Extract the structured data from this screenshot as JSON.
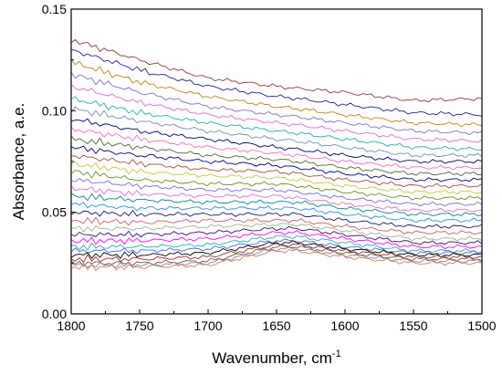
{
  "chart_data": {
    "type": "line",
    "title": "",
    "xlabel": "Wavenumber, cm",
    "xlabel_superscript": "-1",
    "ylabel": "Absorbance, a.e.",
    "xlim": [
      1800,
      1500
    ],
    "ylim": [
      0,
      0.15
    ],
    "x_reversed": true,
    "grid": false,
    "legend": "none",
    "xticks": [
      {
        "value": 1800,
        "label": "1800"
      },
      {
        "value": 1750,
        "label": "1750"
      },
      {
        "value": 1700,
        "label": "1700"
      },
      {
        "value": 1650,
        "label": "1650"
      },
      {
        "value": 1600,
        "label": "1600"
      },
      {
        "value": 1550,
        "label": "1550"
      },
      {
        "value": 1500,
        "label": "1500"
      }
    ],
    "yticks": [
      {
        "value": 0,
        "label": "0.00"
      },
      {
        "value": 0.05,
        "label": "0.05"
      },
      {
        "value": 0.1,
        "label": "0.10"
      },
      {
        "value": 0.15,
        "label": "0.15"
      }
    ],
    "x": [
      1800,
      1750,
      1700,
      1650,
      1635,
      1600,
      1550,
      1500
    ],
    "series": [
      {
        "color": "#8b3a3a",
        "values": [
          0.135,
          0.125,
          0.116,
          0.112,
          0.111,
          0.109,
          0.105,
          0.106
        ]
      },
      {
        "color": "#1f1f8f",
        "values": [
          0.13,
          0.12,
          0.112,
          0.107,
          0.106,
          0.103,
          0.099,
          0.098
        ]
      },
      {
        "color": "#b8860b",
        "values": [
          0.124,
          0.114,
          0.107,
          0.102,
          0.101,
          0.098,
          0.094,
          0.093
        ]
      },
      {
        "color": "#7a6fd0",
        "values": [
          0.118,
          0.109,
          0.102,
          0.098,
          0.097,
          0.094,
          0.09,
          0.089
        ]
      },
      {
        "color": "#e066e0",
        "values": [
          0.112,
          0.104,
          0.098,
          0.094,
          0.093,
          0.09,
          0.086,
          0.085
        ]
      },
      {
        "color": "#20b2aa",
        "values": [
          0.106,
          0.099,
          0.094,
          0.09,
          0.089,
          0.086,
          0.082,
          0.081
        ]
      },
      {
        "color": "#6a8fc0",
        "values": [
          0.101,
          0.095,
          0.09,
          0.086,
          0.085,
          0.082,
          0.078,
          0.078
        ]
      },
      {
        "color": "#000080",
        "values": [
          0.096,
          0.09,
          0.086,
          0.082,
          0.081,
          0.078,
          0.075,
          0.075
        ]
      },
      {
        "color": "#ff69b4",
        "values": [
          0.091,
          0.086,
          0.082,
          0.079,
          0.078,
          0.075,
          0.072,
          0.072
        ]
      },
      {
        "color": "#4a6a2a",
        "values": [
          0.086,
          0.082,
          0.078,
          0.076,
          0.075,
          0.072,
          0.069,
          0.069
        ]
      },
      {
        "color": "#00008b",
        "values": [
          0.082,
          0.078,
          0.075,
          0.073,
          0.072,
          0.069,
          0.066,
          0.066
        ]
      },
      {
        "color": "#a0522d",
        "values": [
          0.078,
          0.074,
          0.071,
          0.07,
          0.069,
          0.066,
          0.063,
          0.063
        ]
      },
      {
        "color": "#c8c832",
        "values": [
          0.074,
          0.07,
          0.068,
          0.067,
          0.066,
          0.063,
          0.06,
          0.06
        ]
      },
      {
        "color": "#6b8e23",
        "values": [
          0.07,
          0.066,
          0.064,
          0.064,
          0.063,
          0.06,
          0.057,
          0.057
        ]
      },
      {
        "color": "#7b68ee",
        "values": [
          0.066,
          0.063,
          0.061,
          0.061,
          0.06,
          0.057,
          0.054,
          0.054
        ]
      },
      {
        "color": "#da70d6",
        "values": [
          0.062,
          0.059,
          0.058,
          0.058,
          0.057,
          0.054,
          0.051,
          0.051
        ]
      },
      {
        "color": "#008b8b",
        "values": [
          0.058,
          0.056,
          0.055,
          0.055,
          0.055,
          0.052,
          0.049,
          0.049
        ]
      },
      {
        "color": "#1e90ff",
        "values": [
          0.054,
          0.052,
          0.052,
          0.052,
          0.052,
          0.049,
          0.046,
          0.046
        ]
      },
      {
        "color": "#191970",
        "values": [
          0.05,
          0.049,
          0.049,
          0.049,
          0.049,
          0.046,
          0.043,
          0.043
        ]
      },
      {
        "color": "#cd5c5c",
        "values": [
          0.046,
          0.045,
          0.046,
          0.046,
          0.046,
          0.043,
          0.04,
          0.04
        ]
      },
      {
        "color": "#8fbc8f",
        "values": [
          0.042,
          0.042,
          0.043,
          0.044,
          0.044,
          0.041,
          0.037,
          0.037
        ]
      },
      {
        "color": "#4b0082",
        "values": [
          0.039,
          0.039,
          0.04,
          0.042,
          0.042,
          0.039,
          0.035,
          0.035
        ]
      },
      {
        "color": "#ff00ff",
        "values": [
          0.036,
          0.036,
          0.037,
          0.04,
          0.04,
          0.037,
          0.033,
          0.033
        ]
      },
      {
        "color": "#20b2aa",
        "values": [
          0.033,
          0.033,
          0.034,
          0.038,
          0.038,
          0.035,
          0.031,
          0.031
        ]
      },
      {
        "color": "#4169e1",
        "values": [
          0.031,
          0.031,
          0.032,
          0.036,
          0.036,
          0.033,
          0.03,
          0.03
        ]
      },
      {
        "color": "#000000",
        "values": [
          0.029,
          0.029,
          0.03,
          0.035,
          0.035,
          0.032,
          0.029,
          0.029
        ]
      },
      {
        "color": "#b22222",
        "values": [
          0.027,
          0.027,
          0.028,
          0.034,
          0.034,
          0.031,
          0.028,
          0.028
        ]
      },
      {
        "color": "#556b2f",
        "values": [
          0.025,
          0.025,
          0.026,
          0.033,
          0.033,
          0.03,
          0.027,
          0.027
        ]
      },
      {
        "color": "#9370db",
        "values": [
          0.024,
          0.024,
          0.025,
          0.032,
          0.032,
          0.029,
          0.026,
          0.026
        ]
      },
      {
        "color": "#cd853f",
        "values": [
          0.023,
          0.023,
          0.024,
          0.031,
          0.031,
          0.028,
          0.025,
          0.025
        ]
      }
    ]
  }
}
